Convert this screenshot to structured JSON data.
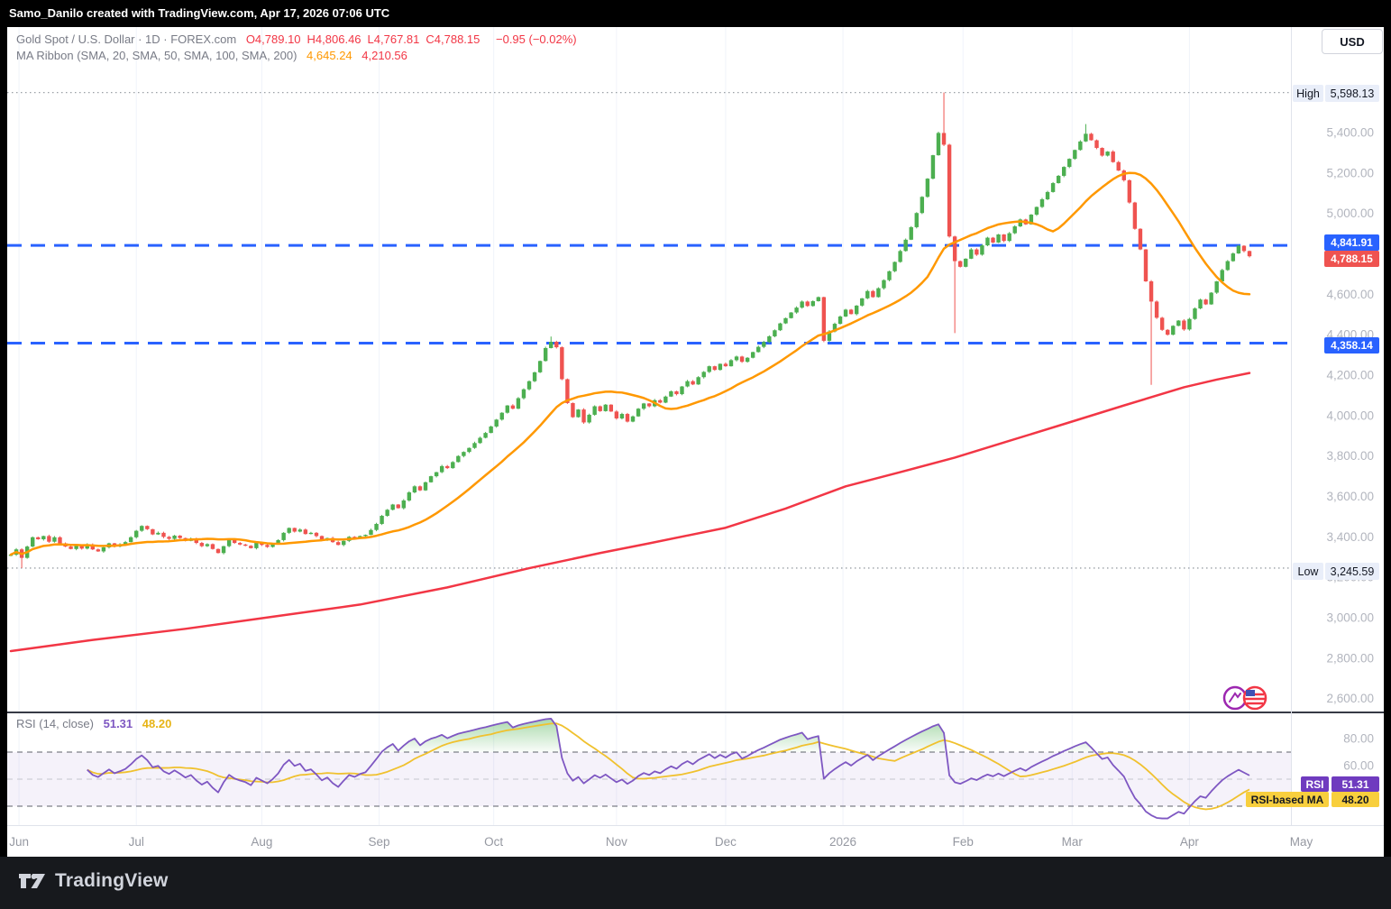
{
  "header": {
    "attribution": "Samo_Danilo created with TradingView.com, Apr 17, 2026 07:06 UTC"
  },
  "legend": {
    "symbol": "Gold Spot / U.S. Dollar · 1D · FOREX.com",
    "ohlc": [
      {
        "label": "O",
        "value": "4,789.10"
      },
      {
        "label": "H",
        "value": "4,806.46"
      },
      {
        "label": "L",
        "value": "4,767.81"
      },
      {
        "label": "C",
        "value": "4,788.15"
      }
    ],
    "change": "−0.95 (−0.02%)",
    "ma_title": "MA Ribbon (SMA, 20, SMA, 50, SMA, 100, SMA, 200)",
    "sma20_value": "4,645.24",
    "sma200_value": "4,210.56"
  },
  "price_scale": {
    "currency": "USD",
    "high_label": "High",
    "high_value": "5,598.13",
    "low_label": "Low",
    "low_value": "3,245.59",
    "level_upper": "4,841.91",
    "last_price": "4,788.15",
    "level_lower": "4,358.14"
  },
  "rsi_legend": {
    "title": "RSI (14, close)",
    "value": "51.31",
    "ma_value": "48.20",
    "badge_label": "RSI",
    "ma_badge_label": "RSI-based MA"
  },
  "footer": {
    "brand": "TradingView"
  },
  "colors": {
    "up": "#4caf50",
    "down": "#ef5350",
    "sma20": "#ff9800",
    "sma200": "#f23645",
    "level_line": "#2962ff",
    "marker_line": "#9aa0a6",
    "grid": "#f0f3fa",
    "axis_text": "#b2b5be",
    "month_text": "#9598a1",
    "rsi_line": "#7e57c2",
    "rsi_ma_line": "#f0c12e",
    "rsi_band_fill": "rgba(126,87,194,0.08)",
    "rsi_band_edge": "#5d606b",
    "rsi_mid": "#c5c7ce",
    "divider": "#363a45",
    "axis_border": "#e0e3eb"
  },
  "chart_data": {
    "type": "candlestick",
    "title": "Gold Spot / U.S. Dollar, 1D, FOREX.com",
    "y_axis": {
      "ylim": [
        2536,
        5922
      ],
      "ticks": [
        {
          "v": 5400,
          "t": "5,400.00"
        },
        {
          "v": 5200,
          "t": "5,200.00"
        },
        {
          "v": 5000,
          "t": "5,000.00"
        },
        {
          "v": 4800,
          "t": "4,800.00"
        },
        {
          "v": 4600,
          "t": "4,600.00"
        },
        {
          "v": 4400,
          "t": "4,400.00"
        },
        {
          "v": 4200,
          "t": "4,200.00"
        },
        {
          "v": 4000,
          "t": "4,000.00"
        },
        {
          "v": 3800,
          "t": "3,800.00"
        },
        {
          "v": 3600,
          "t": "3,600.00"
        },
        {
          "v": 3400,
          "t": "3,400.00"
        },
        {
          "v": 3200,
          "t": "3,200.00"
        },
        {
          "v": 3000,
          "t": "3,000.00"
        },
        {
          "v": 2800,
          "t": "2,800.00"
        },
        {
          "v": 2600,
          "t": "2,600.00"
        }
      ]
    },
    "x_axis": {
      "months": [
        {
          "label": "Jun",
          "i": 1.5
        },
        {
          "label": "Jul",
          "i": 23
        },
        {
          "label": "Aug",
          "i": 46
        },
        {
          "label": "Sep",
          "i": 67.5
        },
        {
          "label": "Oct",
          "i": 88.5
        },
        {
          "label": "Nov",
          "i": 111
        },
        {
          "label": "Dec",
          "i": 131
        },
        {
          "label": "2026",
          "i": 152.5
        },
        {
          "label": "Feb",
          "i": 174.5
        },
        {
          "label": "Mar",
          "i": 194.5
        },
        {
          "label": "Apr",
          "i": 216
        },
        {
          "label": "May",
          "i": 236.5
        }
      ]
    },
    "levels": [
      {
        "price": 4841.91,
        "style": "dashed",
        "color": "#2962ff"
      },
      {
        "price": 4358.14,
        "style": "dashed",
        "color": "#2962ff"
      }
    ],
    "high_marker": 5598.13,
    "low_marker": 3245.59,
    "last_close": 4788.15,
    "ohlc_approx": {
      "note": "daily closes Jun..Apr17, open=prev close",
      "closes_segments": [
        [
          3312,
          3338,
          3296,
          3352,
          3398,
          3388,
          3404,
          3376,
          3398,
          3368,
          3352,
          3340,
          3358,
          3342,
          3362,
          3338,
          3328,
          3348,
          3368,
          3352,
          3362
        ],
        [
          3374,
          3398,
          3430,
          3454,
          3438,
          3412,
          3420,
          3400,
          3390,
          3406,
          3394,
          3380,
          3390,
          3370,
          3354,
          3364,
          3340,
          3320,
          3354,
          3384,
          3370,
          3362,
          3356
        ],
        [
          3344,
          3370,
          3360,
          3350,
          3364,
          3384,
          3420,
          3444,
          3426,
          3436,
          3414,
          3420,
          3404,
          3384,
          3394,
          3374,
          3360,
          3380,
          3400,
          3394,
          3404
        ],
        [
          3410,
          3434,
          3464,
          3504,
          3534,
          3560,
          3542,
          3580,
          3620,
          3650,
          3630,
          3670,
          3700,
          3720,
          3750,
          3740,
          3770,
          3800,
          3820,
          3840,
          3864
        ],
        [
          3890,
          3914,
          3946,
          3980,
          4014,
          4050,
          4034,
          4086,
          4130,
          4170,
          4214,
          4270,
          4334,
          4365,
          4338,
          4180,
          4062,
          3992,
          4030,
          3966,
          4004,
          4046,
          4022
        ],
        [
          4054,
          4020,
          3986,
          4008,
          3970,
          3996,
          4034,
          4060,
          4046,
          4076,
          4064,
          4094,
          4120,
          4106,
          4144,
          4170,
          4154,
          4190,
          4216,
          4244
        ],
        [
          4226,
          4256,
          4244,
          4274,
          4292,
          4266,
          4286,
          4314,
          4340,
          4364,
          4392,
          4422,
          4456,
          4482,
          4510,
          4534,
          4564,
          4542,
          4566,
          4586,
          4370,
          4416
        ],
        [
          4454,
          4490,
          4524,
          4502,
          4544,
          4580,
          4616,
          4586,
          4630,
          4670,
          4714,
          4760,
          4814,
          4870,
          4932,
          5002,
          5082,
          5172,
          5288,
          5398,
          5340,
          4886,
          4764
        ],
        [
          4736,
          4776,
          4822,
          4796,
          4842,
          4880,
          4856,
          4896,
          4864,
          4902,
          4936,
          4970,
          4946,
          4994,
          5032,
          5070,
          5106,
          5150,
          5186,
          5230
        ],
        [
          5270,
          5314,
          5356,
          5394,
          5362,
          5324,
          5286,
          5306,
          5254,
          5212,
          5164,
          5054,
          4924,
          4822,
          4664,
          4564,
          4484,
          4424,
          4400,
          4444,
          4470,
          4426
        ],
        [
          4478,
          4530,
          4574,
          4550,
          4608,
          4664,
          4720,
          4764,
          4802,
          4840,
          4814,
          4788.15
        ]
      ],
      "wick_overrides": {
        "2": {
          "low": 3245.59
        },
        "99": {
          "high": 4391
        },
        "171": {
          "high": 5598.13
        },
        "173": {
          "low": 4408
        },
        "197": {
          "high": 5442
        },
        "209": {
          "low": 4152
        }
      }
    },
    "series_overlays": [
      {
        "name": "SMA 20",
        "color": "#ff9800",
        "derive": "sma20_of_closes"
      },
      {
        "name": "SMA 200",
        "color": "#f23645",
        "points": [
          [
            0,
            2835
          ],
          [
            15,
            2890
          ],
          [
            32,
            2945
          ],
          [
            48,
            3005
          ],
          [
            64,
            3065
          ],
          [
            80,
            3150
          ],
          [
            95,
            3245
          ],
          [
            108,
            3320
          ],
          [
            117,
            3368
          ],
          [
            131,
            3445
          ],
          [
            142,
            3540
          ],
          [
            153,
            3650
          ],
          [
            163,
            3720
          ],
          [
            173,
            3792
          ],
          [
            183,
            3875
          ],
          [
            193,
            3958
          ],
          [
            204,
            4050
          ],
          [
            215,
            4140
          ],
          [
            221,
            4178
          ],
          [
            227,
            4210.56
          ]
        ]
      }
    ],
    "rsi_pane": {
      "period": 14,
      "last": 51.31,
      "ma_last": 48.2,
      "bands": [
        70,
        50,
        30
      ],
      "ylim": [
        16,
        98.7
      ],
      "ticks": [
        {
          "v": 80,
          "t": "80.00"
        },
        {
          "v": 60,
          "t": "60.00"
        }
      ]
    }
  }
}
